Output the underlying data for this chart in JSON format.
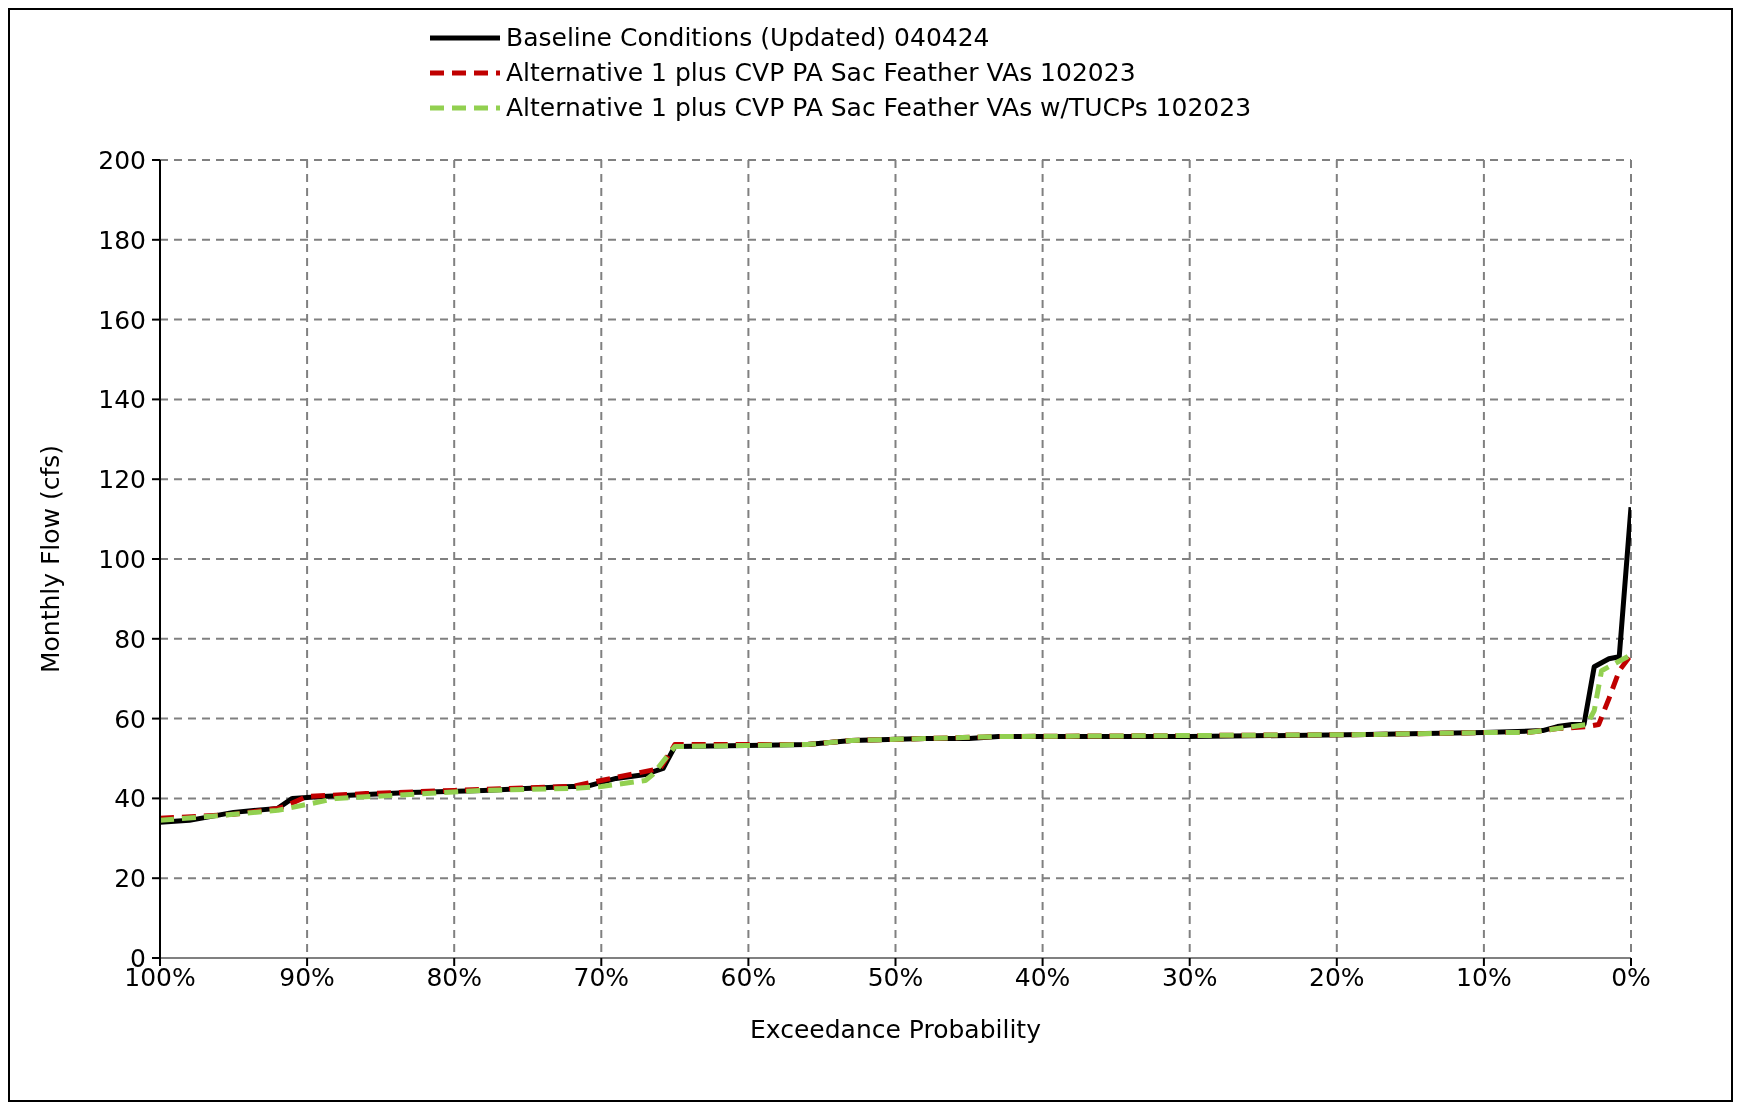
{
  "chart_data": {
    "type": "line",
    "xlabel": "Exceedance Probability",
    "ylabel": "Monthly Flow (cfs)",
    "xlim": [
      100,
      0
    ],
    "xticks": [
      {
        "value": 100,
        "label": "100%"
      },
      {
        "value": 90,
        "label": "90%"
      },
      {
        "value": 80,
        "label": "80%"
      },
      {
        "value": 70,
        "label": "70%"
      },
      {
        "value": 60,
        "label": "60%"
      },
      {
        "value": 50,
        "label": "50%"
      },
      {
        "value": 40,
        "label": "40%"
      },
      {
        "value": 30,
        "label": "30%"
      },
      {
        "value": 20,
        "label": "20%"
      },
      {
        "value": 10,
        "label": "10%"
      },
      {
        "value": 0,
        "label": "0%"
      }
    ],
    "ylim": [
      0,
      200
    ],
    "yticks": [
      0,
      20,
      40,
      60,
      80,
      100,
      120,
      140,
      160,
      180,
      200
    ],
    "grid": true,
    "legend": "top",
    "marker": "none",
    "series": [
      {
        "name": "Baseline Conditions (Updated) 040424",
        "color": "#000000",
        "line_style": "solid",
        "x": [
          100,
          98,
          95,
          92,
          91,
          89,
          86,
          83,
          78,
          72,
          71,
          69,
          67,
          65.8,
          65,
          56,
          53,
          48,
          45,
          43,
          30,
          18,
          10,
          6,
          5,
          4,
          3.2,
          2.5,
          1.5,
          0.8,
          0
        ],
        "values": [
          34,
          34.5,
          36.5,
          37.5,
          40,
          40.5,
          41,
          41.5,
          42,
          43,
          43,
          45,
          46,
          47.5,
          53,
          53.5,
          54.5,
          55,
          55,
          55.5,
          55.5,
          56,
          56.5,
          57,
          58,
          58.5,
          58.5,
          73,
          75,
          75.5,
          113
        ]
      },
      {
        "name": "Alternative 1 plus CVP PA Sac Feather VAs 102023",
        "color": "#c00000",
        "line_style": "dashed",
        "x": [
          100,
          95,
          92,
          91.5,
          90,
          86,
          80,
          72,
          70,
          68,
          66,
          65,
          56,
          53,
          48,
          43,
          18,
          10,
          7,
          5,
          3,
          2.2,
          1.5,
          0.8,
          0
        ],
        "values": [
          35,
          36,
          37.5,
          38,
          40.5,
          41.2,
          42,
          43,
          44.5,
          46,
          47.5,
          53.5,
          53.5,
          54.5,
          55,
          55.5,
          56,
          56.5,
          56.5,
          57.5,
          58,
          58.5,
          65,
          72,
          76
        ]
      },
      {
        "name": "Alternative 1 plus CVP PA Sac Feather VAs w/TUCPs 102023",
        "color": "#92d050",
        "line_style": "dashed",
        "x": [
          100,
          95,
          92,
          90,
          88,
          83,
          78,
          72,
          70,
          67,
          66.5,
          65,
          56,
          53,
          48,
          43,
          18,
          10,
          7,
          5,
          3,
          2.5,
          2,
          1,
          0
        ],
        "values": [
          34.5,
          36,
          37,
          38.5,
          40,
          41,
          42,
          42.5,
          43,
          44.5,
          46,
          53,
          53.5,
          54.5,
          55,
          55.5,
          56,
          56.5,
          56.5,
          57.5,
          58.5,
          62,
          72,
          74,
          76
        ]
      }
    ]
  }
}
